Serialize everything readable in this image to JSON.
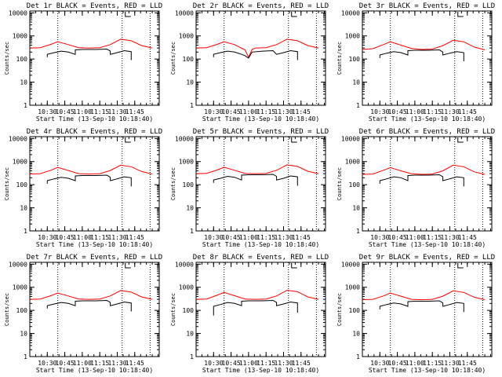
{
  "chart_data": [
    {
      "type": "line",
      "title": "Det 1r BLACK = Events, RED = LLD",
      "xlabel": "Start Time (13-Sep-10 10:18:40)",
      "ylabel": "Counts/sec",
      "yscale": "log",
      "ylim": [
        1,
        12000
      ],
      "xlim": [
        10.25,
        12.1
      ],
      "xticks": [
        10.5,
        10.75,
        11.0,
        11.25,
        11.5,
        11.75
      ],
      "xtick_labels": [
        "10:30",
        "10:45",
        "11:00",
        "11:15",
        "11:30",
        "11:45"
      ],
      "yticks": [
        1,
        10,
        100,
        1000,
        10000
      ],
      "ytick_labels": [
        "1",
        "10",
        "100",
        "1000",
        "10000"
      ],
      "vlines": [
        10.65,
        11.57,
        11.97
      ],
      "series": [
        {
          "name": "LLD",
          "color": "#ff0000",
          "x": [
            10.25,
            10.4,
            10.55,
            10.65,
            10.8,
            10.95,
            11.1,
            11.25,
            11.4,
            11.55,
            11.7,
            11.85,
            12.0
          ],
          "y": [
            300,
            310,
            430,
            560,
            420,
            310,
            300,
            310,
            420,
            720,
            620,
            380,
            300
          ]
        },
        {
          "name": "Events",
          "color": "#000000",
          "x": [
            10.5,
            10.5,
            10.6,
            10.7,
            10.8,
            10.9,
            10.9,
            11.0,
            11.2,
            11.35,
            11.4,
            11.4,
            11.5,
            11.6,
            11.7,
            11.7
          ],
          "y": [
            120,
            160,
            190,
            220,
            200,
            160,
            250,
            260,
            260,
            270,
            220,
            160,
            190,
            230,
            210,
            90
          ]
        }
      ]
    },
    {
      "type": "line",
      "title": "Det 2r BLACK = Events, RED = LLD",
      "xlabel": "Start Time (13-Sep-10 10:18:40)",
      "ylabel": "Counts/sec",
      "yscale": "log",
      "ylim": [
        1,
        12000
      ],
      "xlim": [
        10.25,
        12.1
      ],
      "xticks": [
        10.5,
        10.75,
        11.0,
        11.25,
        11.5,
        11.75
      ],
      "xtick_labels": [
        "10:30",
        "10:45",
        "11:00",
        "11:15",
        "11:30",
        "11:45"
      ],
      "yticks": [
        1,
        10,
        100,
        1000,
        10000
      ],
      "ytick_labels": [
        "1",
        "10",
        "100",
        "1000",
        "10000"
      ],
      "vlines": [
        10.65,
        11.57,
        11.97
      ],
      "series": [
        {
          "name": "LLD",
          "color": "#ff0000",
          "x": [
            10.25,
            10.4,
            10.55,
            10.65,
            10.8,
            10.95,
            11.0,
            11.05,
            11.1,
            11.25,
            11.4,
            11.55,
            11.7,
            11.85,
            12.0
          ],
          "y": [
            300,
            310,
            430,
            560,
            420,
            250,
            120,
            260,
            300,
            310,
            420,
            720,
            620,
            380,
            300
          ]
        },
        {
          "name": "Events",
          "color": "#000000",
          "x": [
            10.5,
            10.5,
            10.6,
            10.7,
            10.8,
            10.9,
            10.95,
            11.0,
            11.05,
            11.2,
            11.35,
            11.4,
            11.5,
            11.6,
            11.7,
            11.7
          ],
          "y": [
            120,
            160,
            190,
            220,
            200,
            160,
            140,
            110,
            200,
            220,
            230,
            160,
            190,
            230,
            210,
            90
          ]
        }
      ]
    },
    {
      "type": "line",
      "title": "Det 3r BLACK = Events, RED = LLD",
      "xlabel": "Start Time (13-Sep-10 10:18:40)",
      "ylabel": "Counts/sec",
      "yscale": "log",
      "ylim": [
        1,
        12000
      ],
      "xlim": [
        10.25,
        12.1
      ],
      "xticks": [
        10.5,
        10.75,
        11.0,
        11.25,
        11.5,
        11.75
      ],
      "xtick_labels": [
        "10:30",
        "10:45",
        "11:00",
        "11:15",
        "11:30",
        "11:45"
      ],
      "yticks": [
        1,
        10,
        100,
        1000,
        10000
      ],
      "ytick_labels": [
        "1",
        "10",
        "100",
        "1000",
        "10000"
      ],
      "vlines": [
        10.65,
        11.57,
        11.97
      ],
      "series": [
        {
          "name": "LLD",
          "color": "#ff0000",
          "x": [
            10.25,
            10.4,
            10.55,
            10.65,
            10.8,
            10.95,
            11.1,
            11.25,
            11.4,
            11.55,
            11.7,
            11.85,
            12.0
          ],
          "y": [
            260,
            280,
            420,
            560,
            400,
            290,
            260,
            270,
            380,
            650,
            560,
            330,
            250
          ]
        },
        {
          "name": "Events",
          "color": "#000000",
          "x": [
            10.5,
            10.5,
            10.6,
            10.7,
            10.8,
            10.9,
            10.9,
            11.0,
            11.2,
            11.35,
            11.4,
            11.4,
            11.5,
            11.6,
            11.7,
            11.7
          ],
          "y": [
            110,
            150,
            180,
            210,
            190,
            150,
            230,
            240,
            240,
            250,
            200,
            150,
            180,
            210,
            190,
            80
          ]
        }
      ]
    },
    {
      "type": "line",
      "title": "Det 4r BLACK = Events, RED = LLD",
      "xlabel": "Start Time (13-Sep-10 10:18:40)",
      "ylabel": "Counts/sec",
      "yscale": "log",
      "ylim": [
        1,
        12000
      ],
      "xlim": [
        10.25,
        12.1
      ],
      "xticks": [
        10.5,
        10.75,
        11.0,
        11.25,
        11.5,
        11.75
      ],
      "xtick_labels": [
        "10:30",
        "10:45",
        "11:00",
        "11:15",
        "11:30",
        "11:45"
      ],
      "yticks": [
        1,
        10,
        100,
        1000,
        10000
      ],
      "ytick_labels": [
        "1",
        "10",
        "100",
        "1000",
        "10000"
      ],
      "vlines": [
        10.65,
        11.57,
        11.97
      ],
      "series": [
        {
          "name": "LLD",
          "color": "#ff0000",
          "x": [
            10.25,
            10.4,
            10.55,
            10.65,
            10.8,
            10.95,
            11.1,
            11.25,
            11.4,
            11.55,
            11.7,
            11.85,
            12.0
          ],
          "y": [
            290,
            300,
            420,
            560,
            410,
            300,
            290,
            300,
            410,
            700,
            600,
            370,
            290
          ]
        },
        {
          "name": "Events",
          "color": "#000000",
          "x": [
            10.5,
            10.5,
            10.6,
            10.7,
            10.8,
            10.9,
            10.9,
            11.0,
            11.2,
            11.35,
            11.4,
            11.4,
            11.5,
            11.6,
            11.7,
            11.7
          ],
          "y": [
            110,
            150,
            180,
            210,
            190,
            150,
            240,
            250,
            250,
            260,
            210,
            150,
            180,
            220,
            200,
            85
          ]
        }
      ]
    },
    {
      "type": "line",
      "title": "Det 5r BLACK = Events, RED = LLD",
      "xlabel": "Start Time (13-Sep-10 10:18:40)",
      "ylabel": "Counts/sec",
      "yscale": "log",
      "ylim": [
        1,
        12000
      ],
      "xlim": [
        10.25,
        12.1
      ],
      "xticks": [
        10.5,
        10.75,
        11.0,
        11.25,
        11.5,
        11.75
      ],
      "xtick_labels": [
        "10:30",
        "10:45",
        "11:00",
        "11:15",
        "11:30",
        "11:45"
      ],
      "yticks": [
        1,
        10,
        100,
        1000,
        10000
      ],
      "ytick_labels": [
        "1",
        "10",
        "100",
        "1000",
        "10000"
      ],
      "vlines": [
        10.65,
        11.57,
        11.97
      ],
      "series": [
        {
          "name": "LLD",
          "color": "#ff0000",
          "x": [
            10.25,
            10.4,
            10.55,
            10.65,
            10.8,
            10.95,
            11.1,
            11.25,
            11.4,
            11.55,
            11.7,
            11.85,
            12.0
          ],
          "y": [
            300,
            310,
            430,
            570,
            420,
            310,
            300,
            310,
            420,
            720,
            620,
            380,
            300
          ]
        },
        {
          "name": "Events",
          "color": "#000000",
          "x": [
            10.5,
            10.5,
            10.6,
            10.7,
            10.8,
            10.9,
            10.9,
            11.0,
            11.2,
            11.35,
            11.4,
            11.4,
            11.5,
            11.6,
            11.7,
            11.7
          ],
          "y": [
            120,
            160,
            190,
            230,
            210,
            160,
            260,
            270,
            270,
            280,
            230,
            160,
            190,
            240,
            220,
            90
          ]
        }
      ]
    },
    {
      "type": "line",
      "title": "Det 6r BLACK = Events, RED = LLD",
      "xlabel": "Start Time (13-Sep-10 10:18:40)",
      "ylabel": "Counts/sec",
      "yscale": "log",
      "ylim": [
        1,
        12000
      ],
      "xlim": [
        10.25,
        12.1
      ],
      "xticks": [
        10.5,
        10.75,
        11.0,
        11.25,
        11.5,
        11.75
      ],
      "xtick_labels": [
        "10:30",
        "10:45",
        "11:00",
        "11:15",
        "11:30",
        "11:45"
      ],
      "yticks": [
        1,
        10,
        100,
        1000,
        10000
      ],
      "ytick_labels": [
        "1",
        "10",
        "100",
        "1000",
        "10000"
      ],
      "vlines": [
        10.65,
        11.57,
        11.97
      ],
      "series": [
        {
          "name": "LLD",
          "color": "#ff0000",
          "x": [
            10.25,
            10.4,
            10.55,
            10.65,
            10.8,
            10.95,
            11.1,
            11.25,
            11.4,
            11.55,
            11.7,
            11.85,
            12.0
          ],
          "y": [
            280,
            290,
            420,
            550,
            400,
            300,
            280,
            290,
            400,
            700,
            600,
            360,
            280
          ]
        },
        {
          "name": "Events",
          "color": "#000000",
          "x": [
            10.5,
            10.5,
            10.6,
            10.7,
            10.8,
            10.9,
            10.9,
            11.0,
            11.2,
            11.35,
            11.4,
            11.4,
            11.5,
            11.6,
            11.7,
            11.7
          ],
          "y": [
            110,
            150,
            180,
            220,
            200,
            150,
            250,
            260,
            260,
            270,
            220,
            150,
            180,
            220,
            200,
            85
          ]
        }
      ]
    },
    {
      "type": "line",
      "title": "Det 7r BLACK = Events, RED = LLD",
      "xlabel": "Start Time (13-Sep-10 10:18:40)",
      "ylabel": "Counts/sec",
      "yscale": "log",
      "ylim": [
        1,
        12000
      ],
      "xlim": [
        10.25,
        12.1
      ],
      "xticks": [
        10.5,
        10.75,
        11.0,
        11.25,
        11.5,
        11.75
      ],
      "xtick_labels": [
        "10:30",
        "10:45",
        "11:00",
        "11:15",
        "11:30",
        "11:45"
      ],
      "yticks": [
        1,
        10,
        100,
        1000,
        10000
      ],
      "ytick_labels": [
        "1",
        "10",
        "100",
        "1000",
        "10000"
      ],
      "vlines": [
        10.65,
        11.57,
        11.97
      ],
      "series": [
        {
          "name": "LLD",
          "color": "#ff0000",
          "x": [
            10.25,
            10.4,
            10.55,
            10.65,
            10.8,
            10.95,
            11.1,
            11.25,
            11.4,
            11.55,
            11.7,
            11.85,
            12.0
          ],
          "y": [
            300,
            310,
            430,
            560,
            420,
            310,
            300,
            310,
            420,
            720,
            620,
            380,
            300
          ]
        },
        {
          "name": "Events",
          "color": "#000000",
          "x": [
            10.5,
            10.5,
            10.6,
            10.7,
            10.8,
            10.9,
            10.9,
            11.0,
            11.2,
            11.35,
            11.4,
            11.4,
            11.5,
            11.6,
            11.7,
            11.7
          ],
          "y": [
            120,
            160,
            190,
            220,
            200,
            160,
            250,
            260,
            260,
            270,
            220,
            160,
            190,
            230,
            210,
            90
          ]
        }
      ]
    },
    {
      "type": "line",
      "title": "Det 8r BLACK = Events, RED = LLD",
      "xlabel": "Start Time (13-Sep-10 10:18:40)",
      "ylabel": "Counts/sec",
      "yscale": "log",
      "ylim": [
        1,
        12000
      ],
      "xlim": [
        10.25,
        12.1
      ],
      "xticks": [
        10.5,
        10.75,
        11.0,
        11.25,
        11.5,
        11.75
      ],
      "xtick_labels": [
        "10:30",
        "10:45",
        "11:00",
        "11:15",
        "11:30",
        "11:45"
      ],
      "yticks": [
        1,
        10,
        100,
        1000,
        10000
      ],
      "ytick_labels": [
        "1",
        "10",
        "100",
        "1000",
        "10000"
      ],
      "vlines": [
        10.65,
        11.57,
        11.97
      ],
      "series": [
        {
          "name": "LLD",
          "color": "#ff0000",
          "x": [
            10.25,
            10.4,
            10.55,
            10.65,
            10.8,
            10.95,
            11.1,
            11.25,
            11.4,
            11.55,
            11.7,
            11.85,
            12.0
          ],
          "y": [
            300,
            310,
            450,
            600,
            430,
            310,
            300,
            310,
            420,
            740,
            640,
            380,
            300
          ]
        },
        {
          "name": "Events",
          "color": "#000000",
          "x": [
            10.5,
            10.5,
            10.6,
            10.7,
            10.8,
            10.9,
            10.9,
            11.0,
            11.2,
            11.35,
            11.4,
            11.4,
            11.5,
            11.6,
            11.7,
            11.7
          ],
          "y": [
            60,
            150,
            180,
            220,
            200,
            160,
            250,
            260,
            260,
            270,
            220,
            160,
            190,
            230,
            210,
            80
          ]
        }
      ]
    },
    {
      "type": "line",
      "title": "Det 9r BLACK = Events, RED = LLD",
      "xlabel": "Start Time (13-Sep-10 10:18:40)",
      "ylabel": "Counts/sec",
      "yscale": "log",
      "ylim": [
        1,
        12000
      ],
      "xlim": [
        10.25,
        12.1
      ],
      "xticks": [
        10.5,
        10.75,
        11.0,
        11.25,
        11.5,
        11.75
      ],
      "xtick_labels": [
        "10:30",
        "10:45",
        "11:00",
        "11:15",
        "11:30",
        "11:45"
      ],
      "yticks": [
        1,
        10,
        100,
        1000,
        10000
      ],
      "ytick_labels": [
        "1",
        "10",
        "100",
        "1000",
        "10000"
      ],
      "vlines": [
        10.65,
        11.57,
        11.97
      ],
      "series": [
        {
          "name": "LLD",
          "color": "#ff0000",
          "x": [
            10.25,
            10.4,
            10.55,
            10.65,
            10.8,
            10.95,
            11.1,
            11.25,
            11.4,
            11.55,
            11.7,
            11.85,
            12.0
          ],
          "y": [
            290,
            300,
            420,
            560,
            410,
            300,
            290,
            300,
            410,
            700,
            600,
            370,
            290
          ]
        },
        {
          "name": "Events",
          "color": "#000000",
          "x": [
            10.5,
            10.5,
            10.6,
            10.7,
            10.8,
            10.9,
            10.9,
            11.0,
            11.2,
            11.35,
            11.4,
            11.4,
            11.5,
            11.6,
            11.7,
            11.7
          ],
          "y": [
            110,
            150,
            180,
            210,
            190,
            150,
            240,
            250,
            250,
            260,
            210,
            150,
            180,
            220,
            200,
            85
          ]
        }
      ]
    }
  ]
}
